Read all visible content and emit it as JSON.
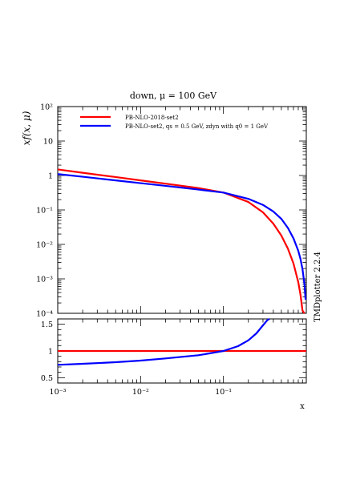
{
  "chart_data": {
    "type": "line",
    "title": "down, μ = 100 GeV",
    "side_label": "TMDplotter 2.2.4",
    "xlabel": "x",
    "ylabel": "xf(x, μ)",
    "x_scale": "log",
    "xlim": [
      0.001,
      1
    ],
    "x_tick_labels": [
      "10⁻³",
      "10⁻²",
      "10⁻¹"
    ],
    "top_panel": {
      "y_scale": "log",
      "ylim": [
        0.0001,
        100
      ],
      "y_tick_labels": [
        "10²",
        "10",
        "1",
        "10⁻¹",
        "10⁻²",
        "10⁻³",
        "10⁻⁴"
      ],
      "series": [
        {
          "name": "PB-NLO-2018-set2",
          "color": "#ff0000",
          "x": [
            0.001,
            0.002,
            0.005,
            0.01,
            0.02,
            0.05,
            0.1,
            0.2,
            0.3,
            0.4,
            0.5,
            0.6,
            0.7,
            0.8,
            0.85,
            0.9,
            0.95
          ],
          "y": [
            1.5,
            1.2,
            0.9,
            0.72,
            0.58,
            0.43,
            0.32,
            0.17,
            0.085,
            0.04,
            0.018,
            0.0075,
            0.0028,
            0.0008,
            0.00035,
            0.00012,
            3e-05
          ]
        },
        {
          "name": "PB-NLO-set2, qs = 0.5 GeV, zdyn with q0 = 1 GeV",
          "color": "#0000ff",
          "x": [
            0.001,
            0.002,
            0.005,
            0.01,
            0.02,
            0.05,
            0.1,
            0.2,
            0.3,
            0.4,
            0.5,
            0.6,
            0.7,
            0.8,
            0.85,
            0.9,
            0.95,
            0.98
          ],
          "y": [
            1.1,
            0.92,
            0.72,
            0.6,
            0.5,
            0.39,
            0.32,
            0.21,
            0.14,
            0.09,
            0.055,
            0.03,
            0.015,
            0.0065,
            0.0038,
            0.0019,
            0.0007,
            0.00025
          ]
        }
      ]
    },
    "ratio_panel": {
      "y_scale": "linear",
      "ylim": [
        0.4,
        1.6
      ],
      "y_ticks": [
        0.5,
        1,
        1.5
      ],
      "y_tick_labels": [
        "0.5",
        "1",
        "1.5"
      ],
      "series": [
        {
          "name": "PB-NLO-2018-set2",
          "color": "#ff0000",
          "x": [
            0.001,
            1
          ],
          "y": [
            1,
            1
          ]
        },
        {
          "name": "PB-NLO-set2, qs = 0.5 GeV, zdyn with q0 = 1 GeV",
          "color": "#0000ff",
          "x": [
            0.001,
            0.002,
            0.005,
            0.01,
            0.02,
            0.05,
            0.1,
            0.15,
            0.2,
            0.25,
            0.3,
            0.34,
            0.36
          ],
          "y": [
            0.74,
            0.76,
            0.79,
            0.82,
            0.86,
            0.92,
            1.0,
            1.09,
            1.2,
            1.33,
            1.48,
            1.58,
            1.62
          ]
        }
      ]
    },
    "legend": {
      "placement": "top-left",
      "entries": [
        {
          "text": "PB-NLO-2018-set2",
          "color": "#ff0000"
        },
        {
          "text": "PB-NLO-set2, qs = 0.5 GeV, zdyn with q0 = 1 GeV",
          "color": "#0000ff"
        }
      ]
    }
  }
}
